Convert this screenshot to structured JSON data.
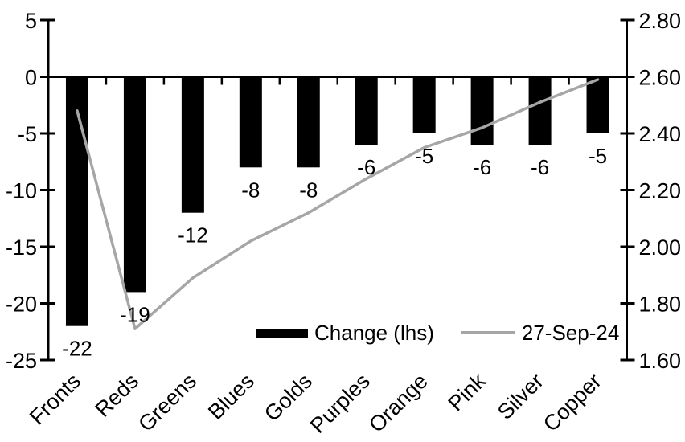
{
  "colors": {
    "bar": "#000000",
    "line": "#a6a6a6",
    "axis": "#000000",
    "text": "#000000",
    "background": "#ffffff"
  },
  "chart_data": {
    "type": "bar",
    "subtype": "dual-axis combo: bars (left axis) + line (right axis)",
    "title": "",
    "categories": [
      "Fronts",
      "Reds",
      "Greens",
      "Blues",
      "Golds",
      "Purples",
      "Orange",
      "Pink",
      "Silver",
      "Copper"
    ],
    "series": [
      {
        "name": "Change (lhs)",
        "type": "bar",
        "axis": "left",
        "color": "#000000",
        "values": [
          -22,
          -19,
          -12,
          -8,
          -8,
          -6,
          -5,
          -6,
          -6,
          -5
        ],
        "data_labels": [
          "-22",
          "-19",
          "-12",
          "-8",
          "-8",
          "-6",
          "-5",
          "-6",
          "-6",
          "-5"
        ]
      },
      {
        "name": "27-Sep-24",
        "type": "line",
        "axis": "right",
        "color": "#a6a6a6",
        "values": [
          2.48,
          1.71,
          1.89,
          2.02,
          2.12,
          2.24,
          2.35,
          2.42,
          2.51,
          2.59
        ]
      }
    ],
    "left_axis": {
      "min": -25,
      "max": 5,
      "tick_labels": [
        "5",
        "0",
        "-5",
        "-10",
        "-15",
        "-20",
        "-25"
      ]
    },
    "right_axis": {
      "min": 1.6,
      "max": 2.8,
      "tick_labels": [
        "2.80",
        "2.60",
        "2.40",
        "2.20",
        "2.00",
        "1.80",
        "1.60"
      ]
    },
    "grid": false,
    "legend_position": "overlay inside plot, lower middle",
    "category_label_rotation_deg": 45
  }
}
